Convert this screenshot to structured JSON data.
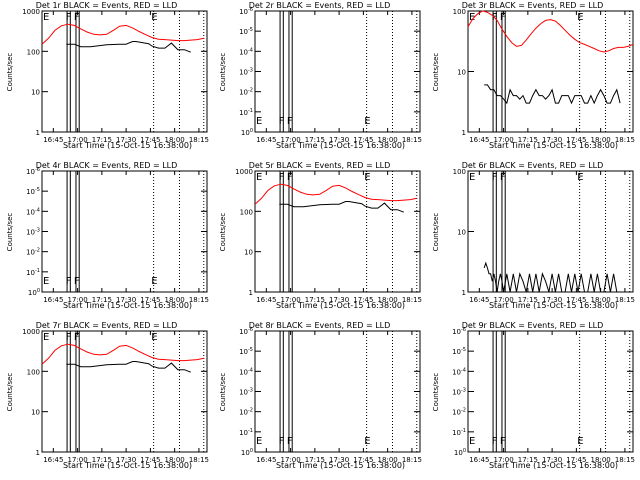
{
  "chart_data": {
    "type": "line",
    "x_axis": {
      "label": "Start Time (15-Oct-15 16:38:00)",
      "ticks": [
        "16:45",
        "17:00",
        "17:15",
        "17:30",
        "17:45",
        "18:00",
        "18:15"
      ],
      "tick_minutes": [
        7,
        22,
        37,
        52,
        67,
        82,
        97
      ],
      "xlim_minutes": [
        0,
        102
      ]
    },
    "y_axis_label": "Counts/sec",
    "log_scale": true,
    "series_colors": {
      "events": "#000000",
      "lld": "#ff0000"
    },
    "event_markers": {
      "solid_lines_minutes": [
        15.5,
        17.5,
        21.0,
        23.0
      ],
      "dotted_lines_minutes": [
        69.0,
        85.0,
        100.0
      ],
      "labels": [
        {
          "text": "F",
          "x_minutes": 16.5
        },
        {
          "text": "F",
          "x_minutes": 21.5
        },
        {
          "text": "E",
          "x_minutes": 69.5
        }
      ],
      "left_label": "E"
    },
    "panels": [
      {
        "title": "Det 1r BLACK = Events, RED = LLD",
        "ylim": [
          1,
          1000
        ],
        "yticks": [
          1,
          10,
          100,
          1000
        ],
        "ytick_labels": [
          "1",
          "10",
          "100",
          "1000"
        ],
        "events": {
          "x": [
            15,
            20,
            24,
            30,
            40,
            48,
            52,
            56,
            58,
            62,
            66,
            68,
            72,
            76,
            80,
            84,
            88,
            92
          ],
          "y": [
            150,
            150,
            130,
            130,
            145,
            150,
            150,
            175,
            175,
            165,
            155,
            135,
            120,
            120,
            160,
            110,
            110,
            95
          ]
        },
        "lld": {
          "x": [
            0,
            4,
            8,
            12,
            16,
            20,
            24,
            28,
            32,
            36,
            40,
            44,
            48,
            52,
            56,
            60,
            64,
            68,
            72,
            76,
            80,
            84,
            88,
            92,
            96,
            100
          ],
          "y": [
            150,
            210,
            330,
            430,
            470,
            440,
            360,
            300,
            265,
            255,
            265,
            330,
            420,
            440,
            380,
            310,
            260,
            220,
            200,
            195,
            190,
            185,
            185,
            190,
            195,
            210
          ]
        },
        "left_label_y": 620
      },
      {
        "title": "Det 2r BLACK = Events, RED = LLD",
        "ylim": [
          1,
          1e-06
        ],
        "yticks": [
          1,
          0.1,
          0.01,
          0.001,
          0.0001,
          1e-05,
          1e-06
        ],
        "ytick_labels": [
          "10^0",
          "10^-1",
          "10^-2",
          "10^-3",
          "10^-4",
          "10^-5",
          "10^-6"
        ],
        "events": null,
        "lld": null,
        "left_label_y": 0.8
      },
      {
        "title": "Det 3r BLACK = Events, RED = LLD",
        "ylim": [
          1,
          100
        ],
        "yticks": [
          1,
          10,
          100
        ],
        "ytick_labels": [
          "1",
          "10",
          "100"
        ],
        "events": {
          "x": [
            10,
            12,
            14,
            16,
            18,
            20,
            22,
            24,
            26,
            28,
            30,
            32,
            34,
            36,
            38,
            40,
            42,
            44,
            46,
            48,
            50,
            52,
            54,
            56,
            58,
            60,
            62,
            64,
            66,
            68,
            70,
            72,
            74,
            76,
            78,
            80,
            82,
            84,
            86,
            88,
            90,
            92,
            94
          ],
          "y": [
            6,
            6,
            5,
            5,
            4,
            4,
            3.5,
            3,
            5,
            4,
            4,
            3.5,
            4,
            3,
            3,
            4,
            5,
            4,
            4,
            3.5,
            4,
            5,
            3,
            3,
            4,
            4,
            4,
            3,
            4,
            4,
            4,
            3,
            3,
            4,
            3,
            4,
            5,
            4,
            3,
            3,
            4,
            5,
            3
          ]
        },
        "lld": {
          "x": [
            0,
            3,
            6,
            9,
            12,
            15,
            18,
            21,
            24,
            27,
            30,
            33,
            36,
            39,
            42,
            45,
            48,
            51,
            54,
            57,
            60,
            63,
            66,
            69,
            72,
            75,
            78,
            81,
            84,
            87,
            90,
            93,
            96,
            99,
            102
          ],
          "y": [
            55,
            75,
            90,
            100,
            95,
            85,
            70,
            50,
            38,
            30,
            26,
            27,
            33,
            42,
            52,
            62,
            70,
            72,
            68,
            58,
            48,
            40,
            34,
            30,
            28,
            26,
            24,
            22,
            21,
            22,
            24,
            25,
            25,
            26,
            28
          ]
        },
        "left_label_y": 88
      },
      {
        "title": "Det 4r BLACK = Events, RED = LLD",
        "ylim": [
          1,
          1e-06
        ],
        "yticks": [
          1,
          0.1,
          0.01,
          0.001,
          0.0001,
          1e-05,
          1e-06
        ],
        "ytick_labels": [
          "10^0",
          "10^-1",
          "10^-2",
          "10^-3",
          "10^-4",
          "10^-5",
          "10^-6"
        ],
        "events": null,
        "lld": null,
        "left_label_y": 0.8
      },
      {
        "title": "Det 5r BLACK = Events, RED = LLD",
        "ylim": [
          1,
          1000
        ],
        "yticks": [
          1,
          10,
          100,
          1000
        ],
        "ytick_labels": [
          "1",
          "10",
          "100",
          "1000"
        ],
        "events": {
          "x": [
            15,
            20,
            24,
            30,
            40,
            48,
            52,
            56,
            58,
            62,
            66,
            68,
            72,
            76,
            80,
            84,
            88,
            92
          ],
          "y": [
            150,
            150,
            130,
            130,
            145,
            150,
            150,
            175,
            175,
            165,
            155,
            135,
            120,
            120,
            160,
            110,
            110,
            95
          ]
        },
        "lld": {
          "x": [
            0,
            4,
            8,
            12,
            16,
            20,
            24,
            28,
            32,
            36,
            40,
            44,
            48,
            52,
            56,
            60,
            64,
            68,
            72,
            76,
            80,
            84,
            88,
            92,
            96,
            100
          ],
          "y": [
            150,
            210,
            330,
            430,
            470,
            440,
            360,
            300,
            265,
            255,
            265,
            330,
            420,
            440,
            380,
            310,
            260,
            220,
            200,
            195,
            190,
            185,
            185,
            190,
            195,
            210
          ]
        },
        "left_label_y": 620
      },
      {
        "title": "Det 6r BLACK = Events, RED = LLD",
        "ylim": [
          1,
          100
        ],
        "yticks": [
          1,
          10,
          100
        ],
        "ytick_labels": [
          "1",
          "10",
          "100"
        ],
        "events": {
          "x": [
            10,
            11,
            12,
            13,
            14,
            15,
            16,
            17,
            18,
            19,
            20,
            21,
            22,
            24,
            26,
            28,
            30,
            32,
            34,
            36,
            38,
            40,
            42,
            44,
            46,
            48,
            50,
            52,
            54,
            56,
            58,
            60,
            62,
            64,
            66,
            68,
            70,
            72,
            74,
            76,
            78,
            80,
            82,
            84,
            86,
            88,
            90,
            92,
            94
          ],
          "y": [
            2.5,
            3,
            2.5,
            2,
            2,
            1.5,
            2,
            1.5,
            1,
            1.5,
            2,
            1.5,
            1,
            2,
            1,
            2,
            1,
            2,
            1.5,
            1,
            2,
            1,
            2,
            1,
            2,
            1.5,
            1,
            2,
            1,
            2,
            1,
            1,
            2,
            1,
            2,
            1,
            2,
            1,
            1,
            2,
            1,
            2,
            1,
            1,
            2,
            1,
            2,
            1,
            1
          ]
        },
        "lld": null,
        "left_label_y": 88
      },
      {
        "title": "Det 7r BLACK = Events, RED = LLD",
        "ylim": [
          1,
          1000
        ],
        "yticks": [
          1,
          10,
          100,
          1000
        ],
        "ytick_labels": [
          "1",
          "10",
          "100",
          "1000"
        ],
        "events": {
          "x": [
            15,
            20,
            24,
            30,
            40,
            48,
            52,
            56,
            58,
            62,
            66,
            68,
            72,
            76,
            80,
            84,
            88,
            92
          ],
          "y": [
            150,
            150,
            130,
            130,
            145,
            150,
            150,
            175,
            175,
            165,
            155,
            135,
            120,
            120,
            160,
            110,
            110,
            95
          ]
        },
        "lld": {
          "x": [
            0,
            4,
            8,
            12,
            16,
            20,
            24,
            28,
            32,
            36,
            40,
            44,
            48,
            52,
            56,
            60,
            64,
            68,
            72,
            76,
            80,
            84,
            88,
            92,
            96,
            100
          ],
          "y": [
            150,
            210,
            330,
            430,
            470,
            440,
            360,
            300,
            265,
            255,
            265,
            330,
            420,
            440,
            380,
            310,
            260,
            220,
            200,
            195,
            190,
            185,
            185,
            190,
            195,
            210
          ]
        },
        "left_label_y": 620
      },
      {
        "title": "Det 8r BLACK = Events, RED = LLD",
        "ylim": [
          1,
          1e-06
        ],
        "yticks": [
          1,
          0.1,
          0.01,
          0.001,
          0.0001,
          1e-05,
          1e-06
        ],
        "ytick_labels": [
          "10^0",
          "10^-1",
          "10^-2",
          "10^-3",
          "10^-4",
          "10^-5",
          "10^-6"
        ],
        "events": null,
        "lld": null,
        "left_label_y": 0.8
      },
      {
        "title": "Det 9r BLACK = Events, RED = LLD",
        "ylim": [
          1,
          1e-06
        ],
        "yticks": [
          1,
          0.1,
          0.01,
          0.001,
          0.0001,
          1e-05,
          1e-06
        ],
        "ytick_labels": [
          "10^0",
          "10^-1",
          "10^-2",
          "10^-3",
          "10^-4",
          "10^-5",
          "10^-6"
        ],
        "events": null,
        "lld": null,
        "left_label_y": 0.8
      }
    ]
  }
}
